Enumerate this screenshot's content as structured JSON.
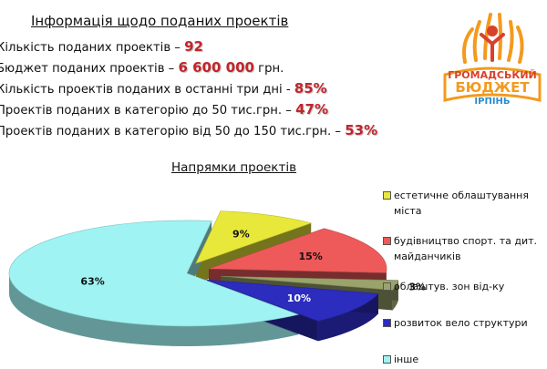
{
  "header": {
    "title": "Інформація щодо поданих проектів"
  },
  "stats": [
    {
      "label": "Кількість поданих проектів – ",
      "value": "92",
      "suffix": ""
    },
    {
      "label": "Бюджет поданих проектів – ",
      "value": "6 600 000",
      "suffix": " грн."
    },
    {
      "label": "Кількість проектів поданих в останні три дні - ",
      "value": "85%",
      "suffix": ""
    },
    {
      "label": "Проектів поданих в категорію до 50 тис.грн. – ",
      "value": "47%",
      "suffix": ""
    },
    {
      "label": "Проектів поданих в категорію від 50 до 150 тис.грн. – ",
      "value": "53%",
      "suffix": ""
    }
  ],
  "logo": {
    "line1": "ГРОМАДСЬКИЙ",
    "line2": "БЮДЖЕТ",
    "line3": "ІРПІНЬ",
    "colors": {
      "orange": "#f39a1e",
      "red": "#d8412a",
      "blue": "#2a8fd0",
      "green": "#6cb33f"
    }
  },
  "chart_data": {
    "type": "pie",
    "style": "3d-exploded",
    "title": "Напрямки проектів",
    "unit": "%",
    "slices": [
      {
        "legend": [
          "естетичне облаштування",
          "міста"
        ],
        "value": 9,
        "label": "9%",
        "color": "#e8e83a"
      },
      {
        "legend": [
          "будівництво спорт. та дит.",
          "майданчиків"
        ],
        "value": 15,
        "label": "15%",
        "color": "#ee5a5a"
      },
      {
        "legend": [
          "облаштув. зон від-ку"
        ],
        "value": 3,
        "label": "3%",
        "color": "#9aa36b"
      },
      {
        "legend": [
          "розвиток вело структури"
        ],
        "value": 10,
        "label": "10%",
        "color": "#2c2cbe"
      },
      {
        "legend": [
          "інше"
        ],
        "value": 63,
        "label": "63%",
        "color": "#9ff3f3"
      }
    ],
    "legend_position": "right"
  }
}
